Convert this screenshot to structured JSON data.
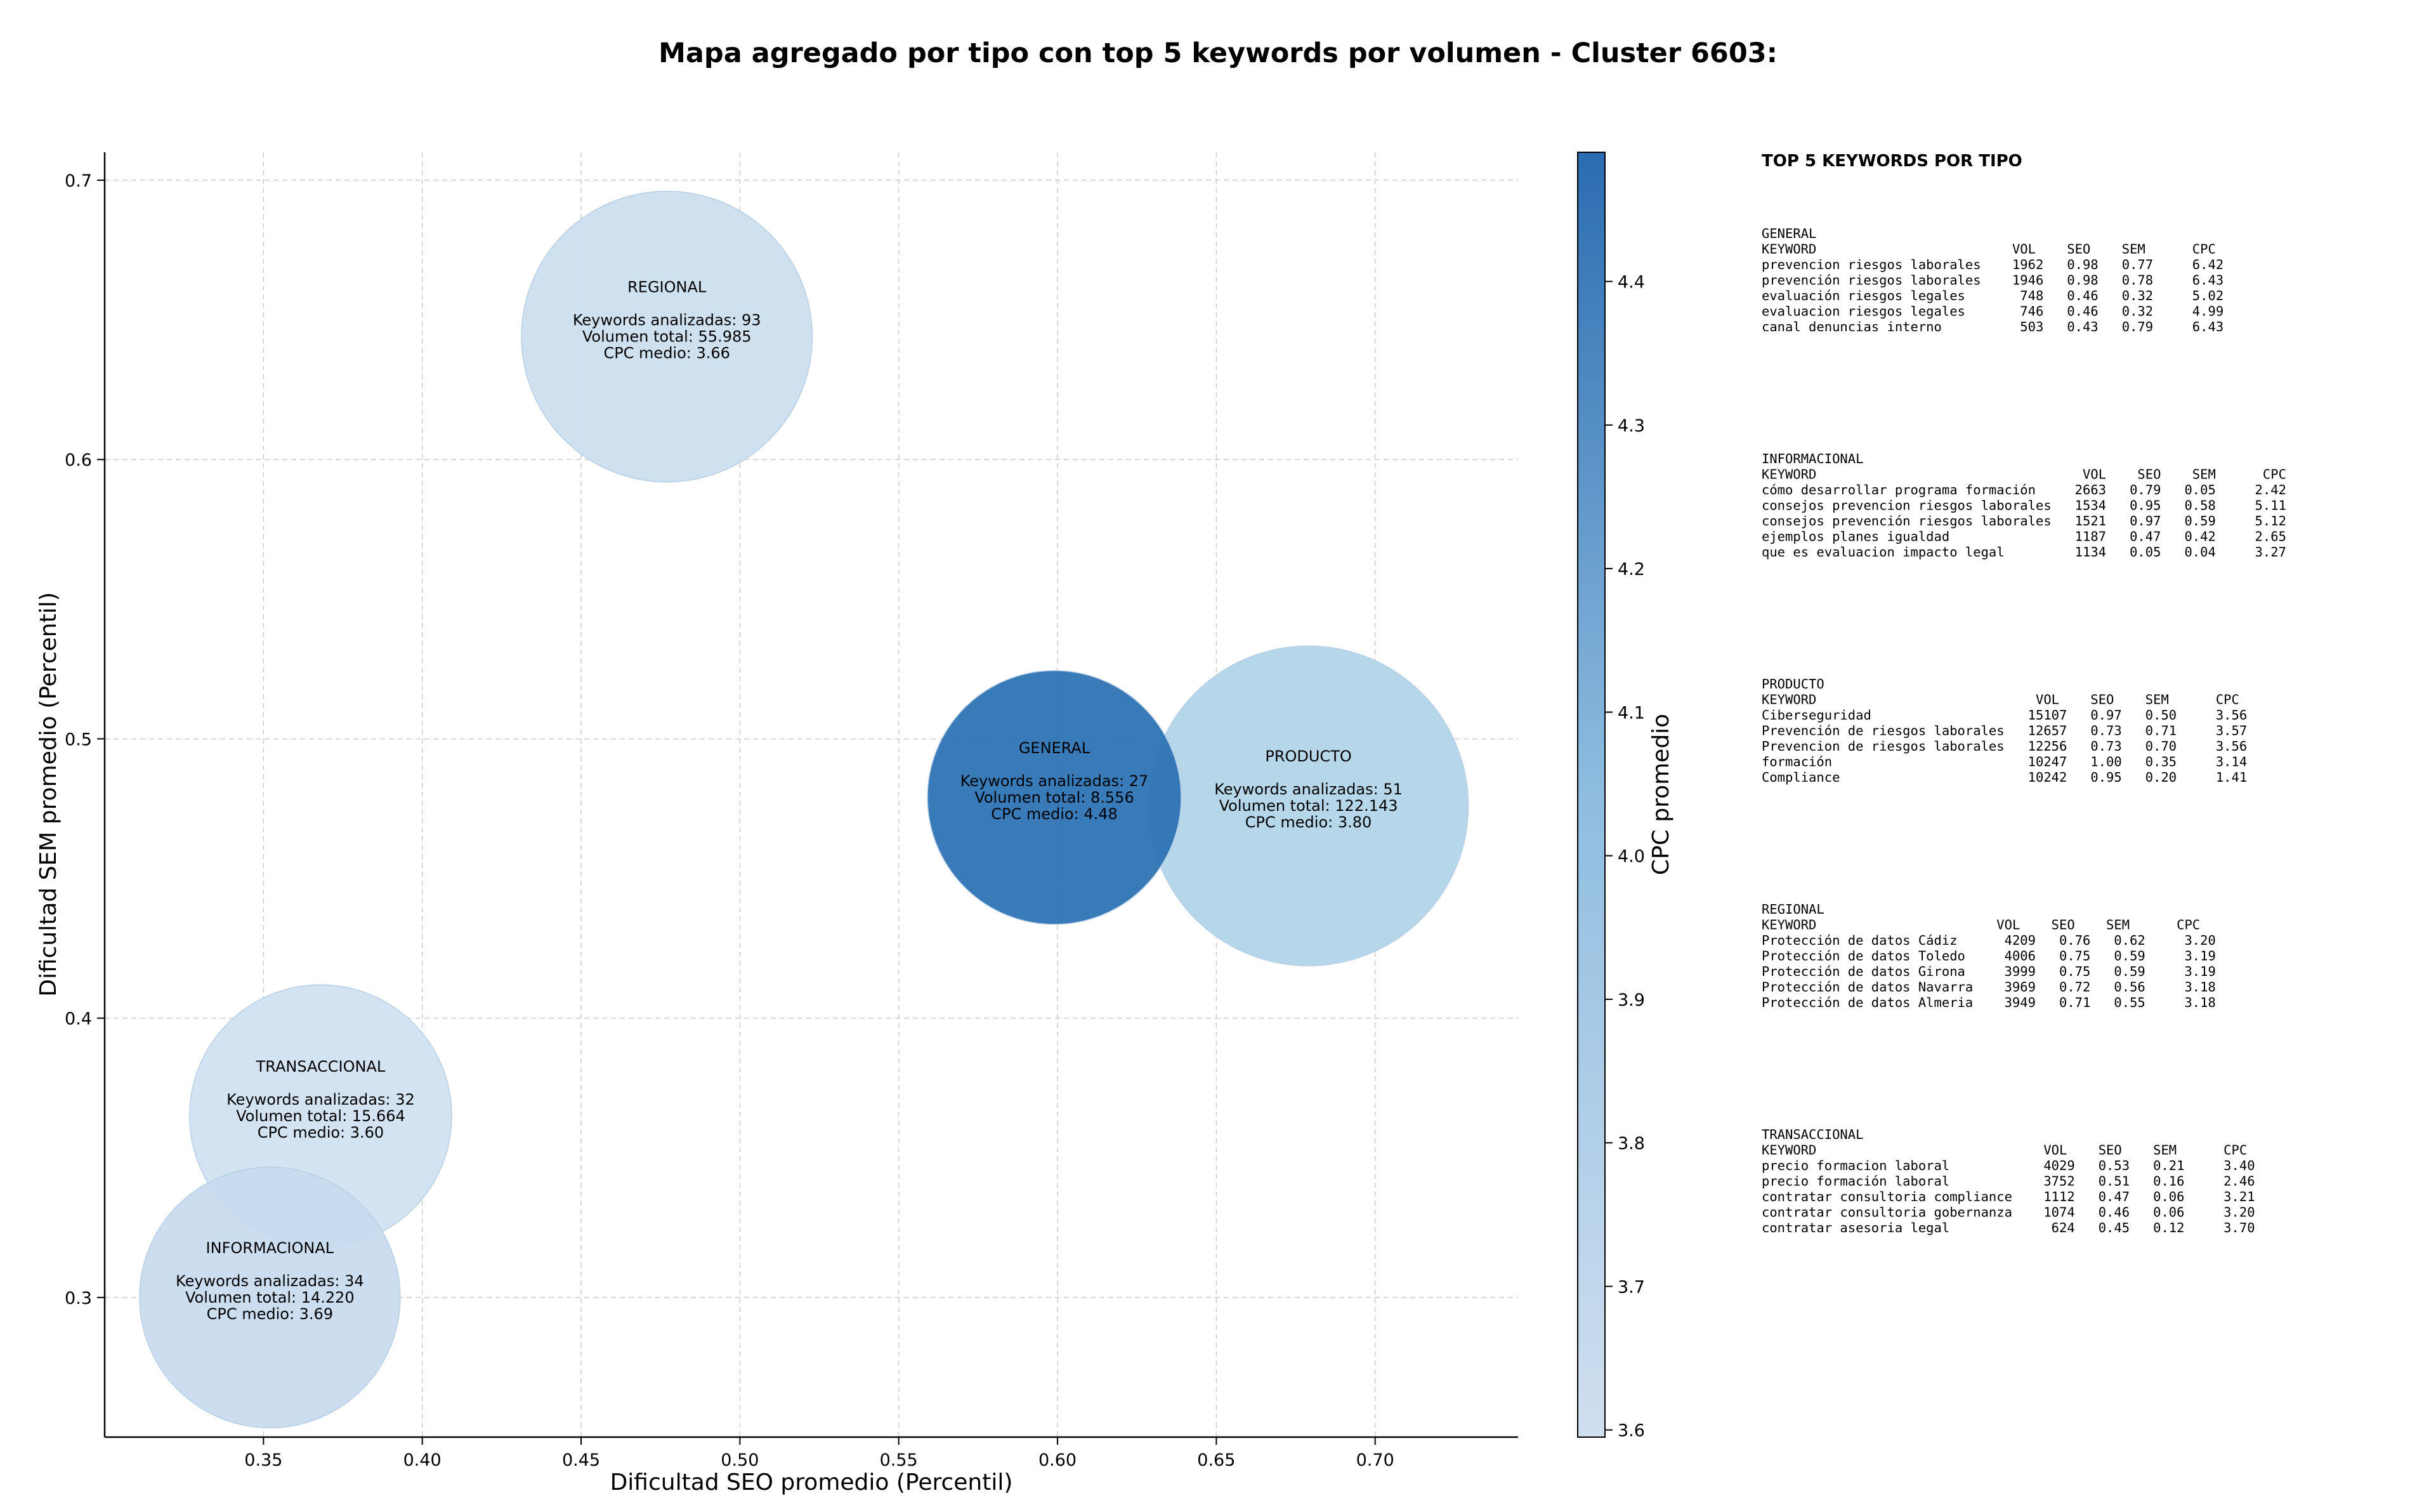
{
  "title": "Mapa agregado por tipo con top 5 keywords por volumen - Cluster 6603:",
  "chart_data": {
    "type": "scatter",
    "xlabel": "Dificultad SEO promedio (Percentil)",
    "ylabel": "Dificultad SEM promedio (Percentil)",
    "xlim": [
      0.3,
      0.745
    ],
    "ylim": [
      0.25,
      0.71
    ],
    "xticks": [
      "0.35",
      "0.40",
      "0.45",
      "0.50",
      "0.55",
      "0.60",
      "0.65",
      "0.70"
    ],
    "yticks": [
      "0.3",
      "0.4",
      "0.5",
      "0.6",
      "0.7"
    ],
    "grid": true,
    "colorbar": {
      "label": "CPC promedio",
      "min": 3.595,
      "max": 4.49,
      "ticks": [
        "3.6",
        "3.7",
        "3.8",
        "3.9",
        "4.0",
        "4.1",
        "4.2",
        "4.3",
        "4.4"
      ],
      "color_low": "#d0dff0",
      "color_high": "#2b6cb0"
    },
    "points": [
      {
        "label": "REGIONAL",
        "x": 0.477,
        "y": 0.644,
        "volume": 55985,
        "lines": [
          "Keywords analizadas: 93",
          "Volumen total: 55.985",
          "CPC medio: 3.66"
        ],
        "cpc": 3.66,
        "color": "#ccdeee"
      },
      {
        "label": "PRODUCTO",
        "x": 0.679,
        "y": 0.476,
        "volume": 122143,
        "lines": [
          "Keywords analizadas: 51",
          "Volumen total: 122.143",
          "CPC medio: 3.80"
        ],
        "cpc": 3.8,
        "color": "#b2d4e8"
      },
      {
        "label": "GENERAL",
        "x": 0.599,
        "y": 0.479,
        "volume": 8556,
        "lines": [
          "Keywords analizadas: 27",
          "Volumen total: 8.556",
          "CPC medio: 4.48"
        ],
        "cpc": 4.48,
        "color": "#2e73b5"
      },
      {
        "label": "TRANSACCIONAL",
        "x": 0.368,
        "y": 0.365,
        "volume": 15664,
        "lines": [
          "Keywords analizadas: 32",
          "Volumen total: 15.664",
          "CPC medio: 3.60"
        ],
        "cpc": 3.6,
        "color": "#d2e1f0"
      },
      {
        "label": "INFORMACIONAL",
        "x": 0.352,
        "y": 0.3,
        "volume": 14220,
        "lines": [
          "Keywords analizadas: 34",
          "Volumen total: 14.220",
          "CPC medio: 3.69"
        ],
        "cpc": 3.69,
        "color": "#c8dbee"
      }
    ]
  },
  "side_panel": {
    "title": "TOP 5 KEYWORDS POR TIPO",
    "groups": [
      {
        "name": "GENERAL",
        "header": "KEYWORD                         VOL    SEO    SEM      CPC",
        "rows": [
          "prevencion riesgos laborales    1962   0.98   0.77     6.42",
          "prevención riesgos laborales    1946   0.98   0.78     6.43",
          "evaluación riesgos legales       748   0.46   0.32     5.02",
          "evaluacion riesgos legales       746   0.46   0.32     4.99",
          "canal denuncias interno          503   0.43   0.79     6.43"
        ]
      },
      {
        "name": "INFORMACIONAL",
        "header": "KEYWORD                                  VOL    SEO    SEM      CPC",
        "rows": [
          "cómo desarrollar programa formación     2663   0.79   0.05     2.42",
          "consejos prevencion riesgos laborales   1534   0.95   0.58     5.11",
          "consejos prevención riesgos laborales   1521   0.97   0.59     5.12",
          "ejemplos planes igualdad                1187   0.47   0.42     2.65",
          "que es evaluacion impacto legal         1134   0.05   0.04     3.27"
        ]
      },
      {
        "name": "PRODUCTO",
        "header": "KEYWORD                            VOL    SEO    SEM      CPC",
        "rows": [
          "Ciberseguridad                    15107   0.97   0.50     3.56",
          "Prevención de riesgos laborales   12657   0.73   0.71     3.57",
          "Prevencion de riesgos laborales   12256   0.73   0.70     3.56",
          "formación                         10247   1.00   0.35     3.14",
          "Compliance                        10242   0.95   0.20     1.41"
        ]
      },
      {
        "name": "REGIONAL",
        "header": "KEYWORD                       VOL    SEO    SEM      CPC",
        "rows": [
          "Protección de datos Cádiz      4209   0.76   0.62     3.20",
          "Protección de datos Toledo     4006   0.75   0.59     3.19",
          "Protección de datos Girona     3999   0.75   0.59     3.19",
          "Protección de datos Navarra    3969   0.72   0.56     3.18",
          "Protección de datos Almeria    3949   0.71   0.55     3.18"
        ]
      },
      {
        "name": "TRANSACCIONAL",
        "header": "KEYWORD                             VOL    SEO    SEM      CPC",
        "rows": [
          "precio formacion laboral            4029   0.53   0.21     3.40",
          "precio formación laboral            3752   0.51   0.16     2.46",
          "contratar consultoria compliance    1112   0.47   0.06     3.21",
          "contratar consultoria gobernanza    1074   0.46   0.06     3.20",
          "contratar asesoria legal             624   0.45   0.12     3.70"
        ]
      }
    ]
  }
}
